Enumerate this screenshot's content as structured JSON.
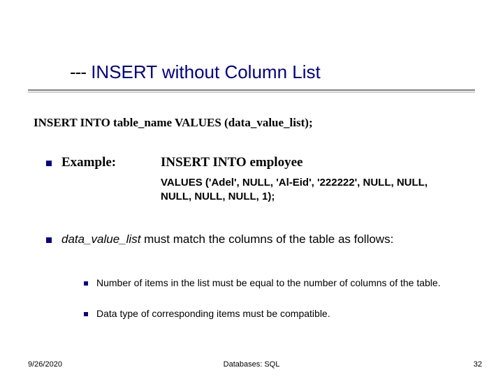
{
  "title": {
    "prefix": "---",
    "text": " INSERT without Column List",
    "color": "#000080",
    "fontsize": 26
  },
  "syntax_line": "INSERT INTO table_name  VALUES (data_value_list);",
  "example": {
    "label": "Example:",
    "code_line1": "INSERT INTO employee",
    "values_text": "VALUES ('Adel', NULL, 'Al-Eid', '222222', NULL, NULL, NULL, NULL, NULL, 1);"
  },
  "paragraph": {
    "italic_lead": "data_value_list",
    "rest": " must match the columns of the table as follows:"
  },
  "subitems": [
    "Number of items in the list must be equal to the number of columns of the table.",
    "Data type of corresponding items must  be compatible."
  ],
  "footer": {
    "date": "9/26/2020",
    "center": "Databases: SQL",
    "page": "32"
  },
  "colors": {
    "bullet": "#000080",
    "title": "#000080",
    "underline": "#808080",
    "background": "#ffffff"
  }
}
